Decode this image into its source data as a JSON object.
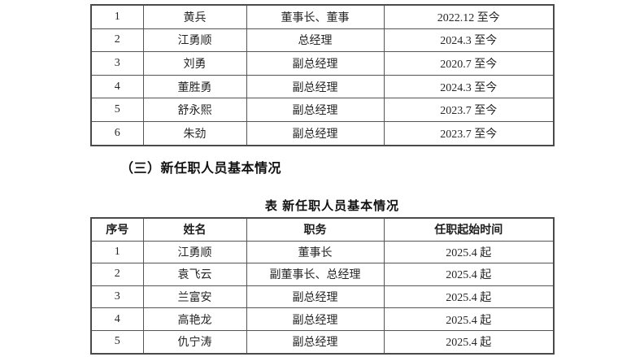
{
  "page": {
    "background_color": "#ffffff",
    "text_color": "#262626",
    "border_color": "#555555"
  },
  "previous_table": {
    "rows": [
      {
        "no": "1",
        "name": "黄兵",
        "position": "董事长、董事",
        "term": "2022.12 至今"
      },
      {
        "no": "2",
        "name": "江勇顺",
        "position": "总经理",
        "term": "2024.3 至今"
      },
      {
        "no": "3",
        "name": "刘勇",
        "position": "副总经理",
        "term": "2020.7 至今"
      },
      {
        "no": "4",
        "name": "董胜勇",
        "position": "副总经理",
        "term": "2024.3 至今"
      },
      {
        "no": "5",
        "name": "舒永熙",
        "position": "副总经理",
        "term": "2023.7 至今"
      },
      {
        "no": "6",
        "name": "朱劲",
        "position": "副总经理",
        "term": "2023.7 至今"
      }
    ]
  },
  "section": {
    "heading": "（三）新任职人员基本情况"
  },
  "new_table": {
    "caption": "表 新任职人员基本情况",
    "headers": {
      "no": "序号",
      "name": "姓名",
      "position": "职务",
      "start": "任职起始时间"
    },
    "rows": [
      {
        "no": "1",
        "name": "江勇顺",
        "position": "董事长",
        "start": "2025.4 起"
      },
      {
        "no": "2",
        "name": "袁飞云",
        "position": "副董事长、总经理",
        "start": "2025.4 起"
      },
      {
        "no": "3",
        "name": "兰富安",
        "position": "副总经理",
        "start": "2025.4 起"
      },
      {
        "no": "4",
        "name": "高艳龙",
        "position": "副总经理",
        "start": "2025.4 起"
      },
      {
        "no": "5",
        "name": "仇宁涛",
        "position": "副总经理",
        "start": "2025.4 起"
      }
    ]
  }
}
